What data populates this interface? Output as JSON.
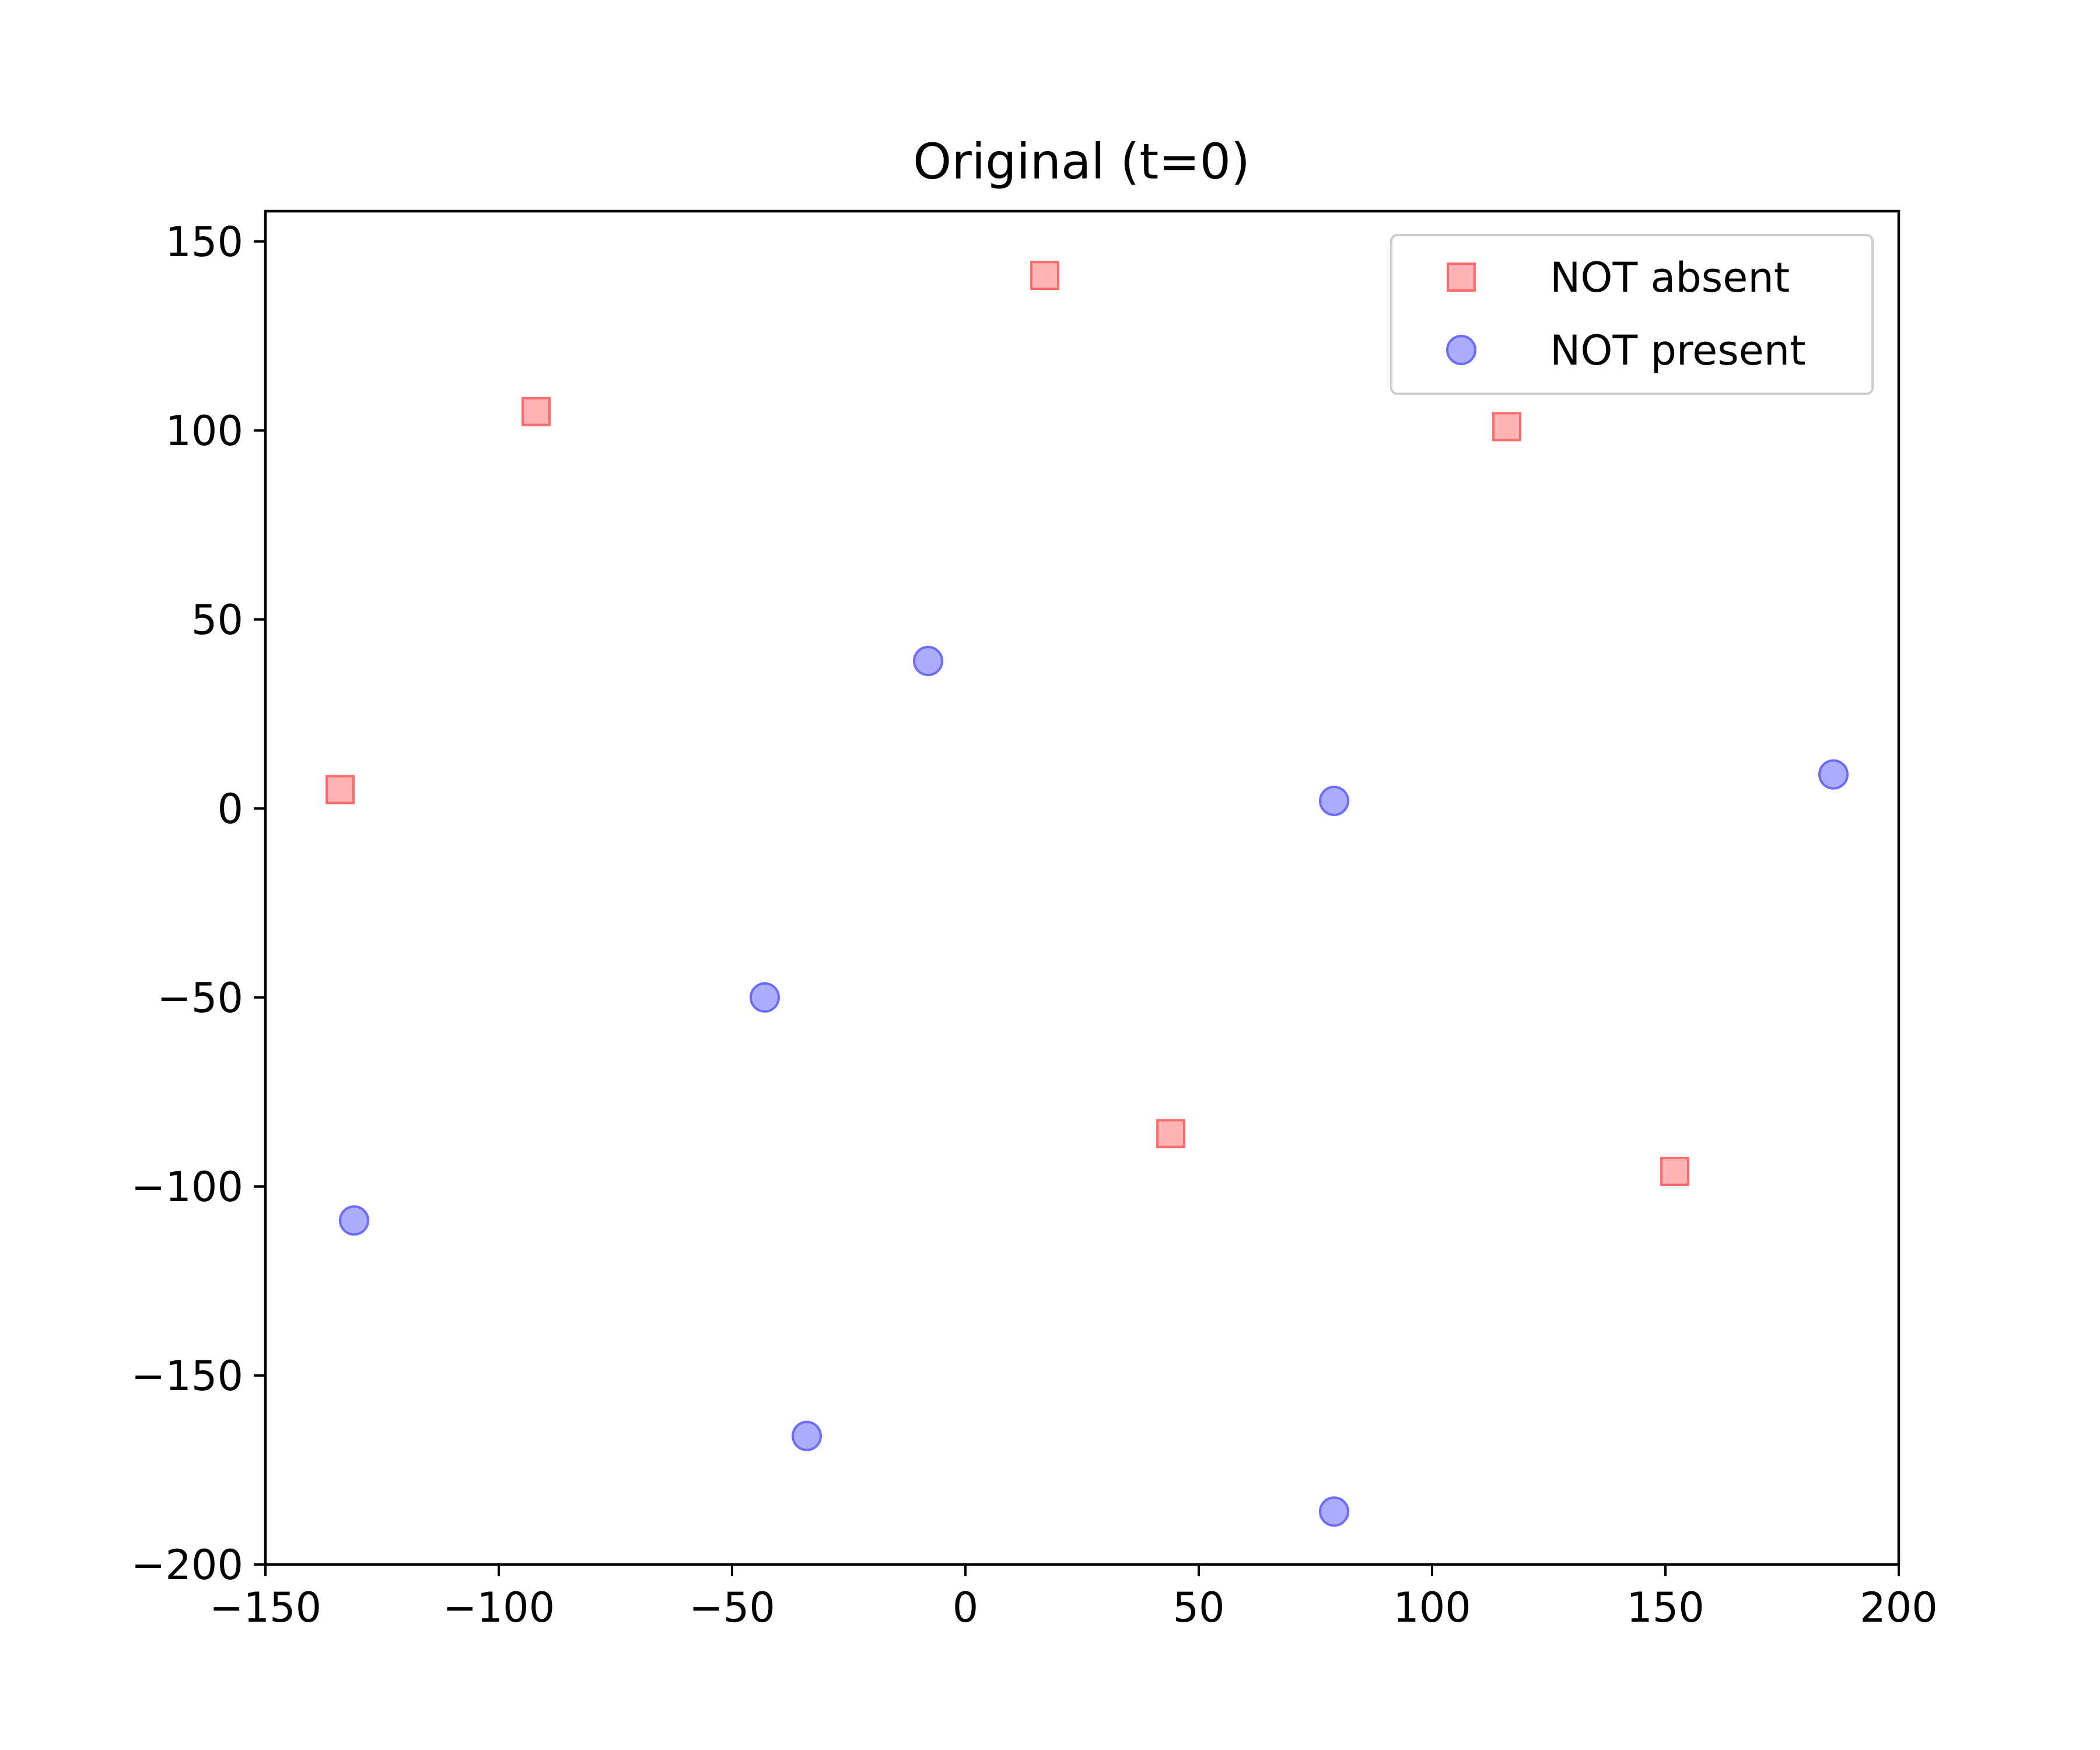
{
  "chart_data": {
    "type": "scatter",
    "title": "Original (t=0)",
    "xlabel": "",
    "ylabel": "",
    "xlim": [
      -150,
      200
    ],
    "ylim": [
      -200,
      158
    ],
    "x_ticks": [
      -150,
      -100,
      -50,
      0,
      50,
      100,
      150,
      200
    ],
    "y_ticks": [
      -200,
      -150,
      -100,
      -50,
      0,
      50,
      100,
      150
    ],
    "grid": false,
    "legend_position": "top-right",
    "series": [
      {
        "name": "NOT absent",
        "marker": "square",
        "color": "#ff9999",
        "edge_color": "#ff6b6b",
        "points": [
          {
            "x": -134,
            "y": 5
          },
          {
            "x": -92,
            "y": 105
          },
          {
            "x": 17,
            "y": 141
          },
          {
            "x": 116,
            "y": 101
          },
          {
            "x": 44,
            "y": -86
          },
          {
            "x": 152,
            "y": -96
          }
        ]
      },
      {
        "name": "NOT present",
        "marker": "circle",
        "color": "#9999ff",
        "edge_color": "#6b6bff",
        "points": [
          {
            "x": -8,
            "y": 39
          },
          {
            "x": 79,
            "y": 2
          },
          {
            "x": 186,
            "y": 9
          },
          {
            "x": -43,
            "y": -50
          },
          {
            "x": -131,
            "y": -109
          },
          {
            "x": -34,
            "y": -166
          },
          {
            "x": 79,
            "y": -186
          }
        ]
      }
    ]
  }
}
